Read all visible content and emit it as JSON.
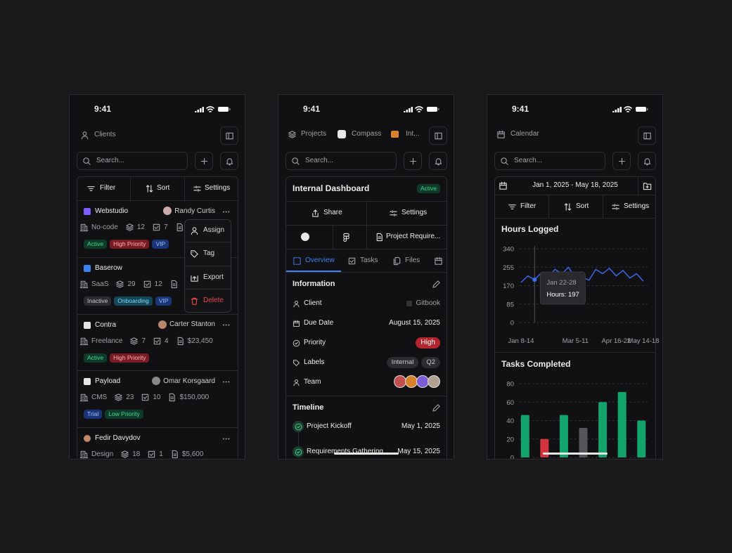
{
  "clients_screen": {
    "time": "9:41",
    "title": "Clients",
    "search": "Search...",
    "toolbar": [
      "Filter",
      "Sort",
      "Settings"
    ],
    "clients": [
      {
        "name": "Webstudio",
        "owner": "Randy Curtis",
        "type": "No-code",
        "projects": "12",
        "tasks": "7",
        "tags": [
          {
            "label": "Active",
            "color": "green"
          },
          {
            "label": "High Priority",
            "color": "red"
          },
          {
            "label": "VIP",
            "color": "blue"
          }
        ]
      },
      {
        "name": "Baserow",
        "type": "SaaS",
        "projects": "29",
        "tasks": "12",
        "tags": [
          {
            "label": "Inactive",
            "color": "gray"
          },
          {
            "label": "Onboarding",
            "color": "cyan"
          },
          {
            "label": "VIP",
            "color": "blue"
          }
        ]
      },
      {
        "name": "Contra",
        "owner": "Carter Stanton",
        "type": "Freelance",
        "projects": "7",
        "tasks": "4",
        "amount": "$23,450",
        "tags": [
          {
            "label": "Active",
            "color": "green"
          },
          {
            "label": "High Priority",
            "color": "red"
          }
        ]
      },
      {
        "name": "Payload",
        "owner": "Omar Korsgaard",
        "type": "CMS",
        "projects": "23",
        "tasks": "10",
        "amount": "$150,000",
        "tags": [
          {
            "label": "Trial",
            "color": "blue"
          },
          {
            "label": "Low Priority",
            "color": "green"
          }
        ]
      },
      {
        "name": "Fedir Davydov",
        "type": "Design",
        "projects": "18",
        "tasks": "1",
        "amount": "$5,600"
      }
    ],
    "menu": [
      "Assign",
      "Tag",
      "Export",
      "Delete"
    ]
  },
  "project_screen": {
    "time": "9:41",
    "tabs": [
      "Projects",
      "Compass",
      "Int..."
    ],
    "search": "Search...",
    "card": {
      "title": "Internal Dashboard",
      "status": "Active",
      "actions": [
        "Share",
        "Settings"
      ],
      "link": "Project Require...",
      "tabs": [
        "Overview",
        "Tasks",
        "Files"
      ],
      "info_title": "Information",
      "info": [
        {
          "label": "Client",
          "value": "Gitbook"
        },
        {
          "label": "Due Date",
          "value": "August 15, 2025"
        },
        {
          "label": "Priority",
          "value": "High"
        },
        {
          "label": "Labels",
          "values": [
            "Internal",
            "Q2"
          ]
        },
        {
          "label": "Team"
        }
      ],
      "timeline_title": "Timeline",
      "timeline": [
        {
          "label": "Project Kickoff",
          "date": "May 1, 2025"
        },
        {
          "label": "Requirements Gathering",
          "date": "May 15, 2025"
        }
      ]
    }
  },
  "calendar_screen": {
    "time": "9:41",
    "title": "Calendar",
    "search": "Search...",
    "range": "Jan 1, 2025 - May 18, 2025",
    "toolbar": [
      "Filter",
      "Sort",
      "Settings"
    ]
  },
  "chart_data": [
    {
      "type": "line",
      "title": "Hours Logged",
      "categories": [
        "Jan 8-14",
        null,
        null,
        null,
        null,
        null,
        null,
        null,
        "Mar 5-11",
        null,
        null,
        null,
        null,
        null,
        "Apr 16-22",
        null,
        null,
        null,
        "May 14-18"
      ],
      "values": [
        185,
        215,
        197,
        230,
        210,
        245,
        225,
        255,
        200,
        210,
        195,
        245,
        225,
        250,
        215,
        240,
        205,
        225,
        190
      ],
      "color": "#3b6cf6",
      "ylim": [
        0,
        340
      ],
      "yticks": [
        0,
        85,
        170,
        255,
        340
      ],
      "grid": true,
      "tooltip": {
        "title": "Jan 22-28",
        "text": "Hours: 197"
      }
    },
    {
      "type": "bar",
      "title": "Tasks Completed",
      "categories": [
        null,
        null,
        null,
        null,
        null,
        null,
        null
      ],
      "values": [
        46,
        20,
        46,
        32,
        60,
        71,
        40
      ],
      "colors": [
        "#12a46a",
        "#d2353f",
        "#12a46a",
        "#55555a",
        "#12a46a",
        "#12a46a",
        "#12a46a"
      ],
      "ylim": [
        0,
        80
      ],
      "yticks": [
        0,
        20,
        40,
        60,
        80
      ],
      "grid": true
    }
  ]
}
